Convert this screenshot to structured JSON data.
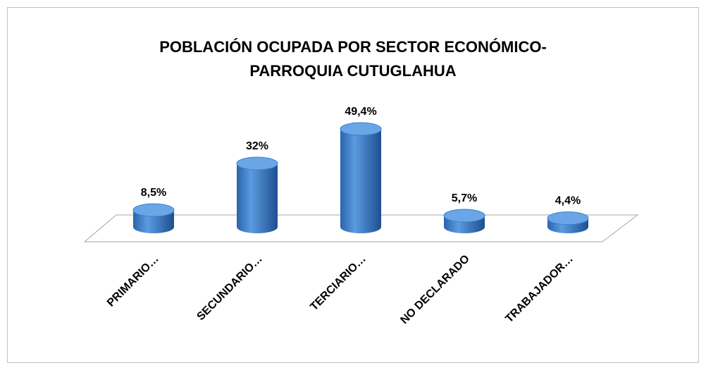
{
  "chart_data": {
    "type": "bar3d",
    "title": "POBLACIÓN OCUPADA POR SECTOR ECONÓMICO- PARROQUIA CUTUGLAHUA",
    "categories": [
      "PRIMARIO…",
      "SECUNDARIO…",
      "TERCIARIO…",
      "NO DECLARADO",
      "TRABAJADOR…"
    ],
    "values": [
      8.5,
      32,
      49.4,
      5.7,
      4.4
    ],
    "value_labels": [
      "8,5%",
      "32%",
      "49,4%",
      "5,7%",
      "4,4%"
    ],
    "color": "#3a7fd0"
  }
}
